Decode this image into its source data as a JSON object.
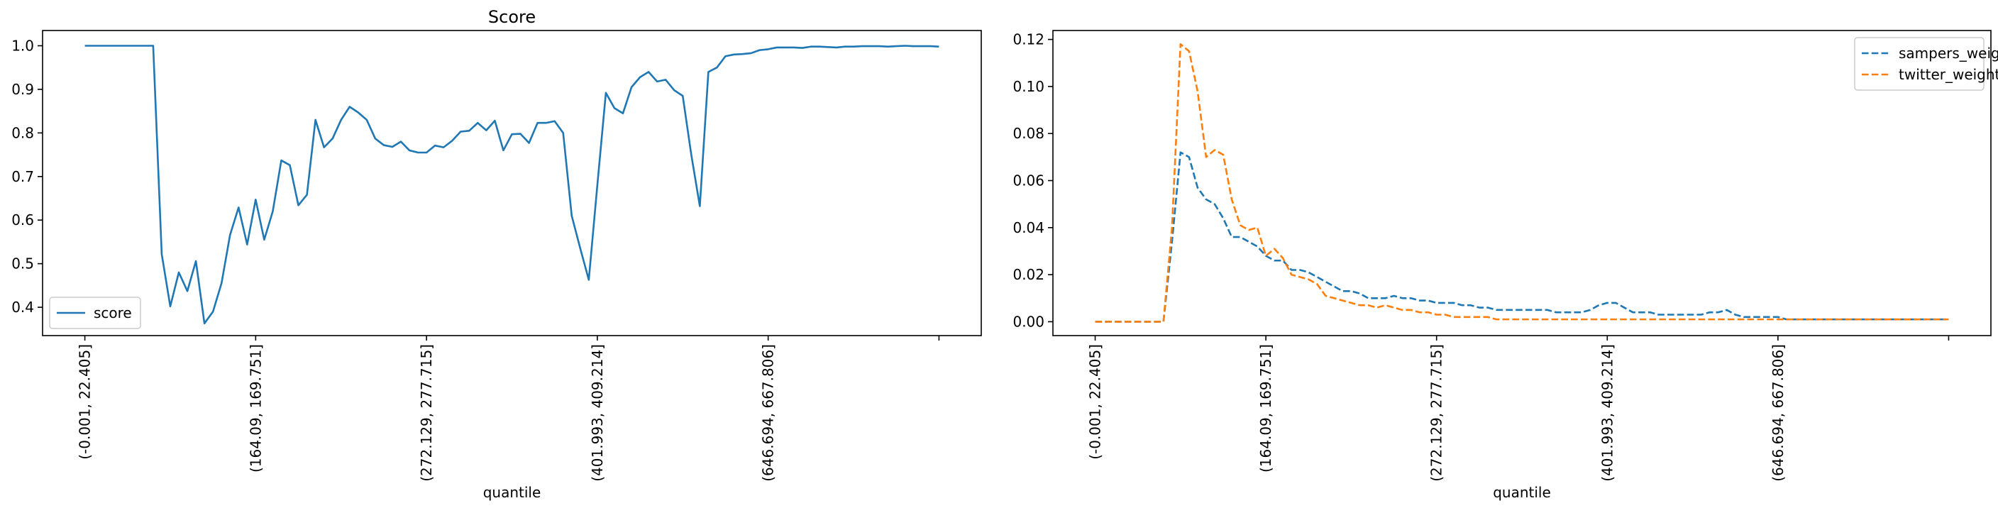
{
  "chart_data": [
    {
      "type": "line",
      "title": "Score",
      "xlabel": "quantile",
      "ylabel": "",
      "ylim": [
        0.335,
        1.035
      ],
      "yticks": [
        0.4,
        0.5,
        0.6,
        0.7,
        0.8,
        0.9,
        1.0
      ],
      "ytick_labels": [
        "0.4",
        "0.5",
        "0.6",
        "0.7",
        "0.8",
        "0.9",
        "1.0"
      ],
      "xlim": [
        -4.95,
        104.95
      ],
      "xticks": [
        0,
        20,
        40,
        60,
        80,
        100
      ],
      "xtick_labels": [
        "(-0.001, 22.405]",
        "(164.09, 169.751]",
        "(272.129, 277.715]",
        "(401.993, 409.214]",
        "(646.694, 667.806]",
        ""
      ],
      "grid": false,
      "legend_position": "lower-left",
      "series": [
        {
          "name": "score",
          "color": "#1f77b4",
          "dashed": false,
          "values": [
            1.0,
            1.0,
            1.0,
            1.0,
            1.0,
            1.0,
            1.0,
            1.0,
            1.0,
            0.522,
            0.402,
            0.48,
            0.437,
            0.506,
            0.363,
            0.39,
            0.455,
            0.566,
            0.629,
            0.544,
            0.647,
            0.555,
            0.62,
            0.737,
            0.726,
            0.634,
            0.658,
            0.83,
            0.767,
            0.787,
            0.83,
            0.86,
            0.847,
            0.83,
            0.787,
            0.772,
            0.768,
            0.78,
            0.76,
            0.755,
            0.755,
            0.771,
            0.767,
            0.782,
            0.803,
            0.805,
            0.823,
            0.806,
            0.828,
            0.76,
            0.797,
            0.798,
            0.777,
            0.823,
            0.823,
            0.827,
            0.8,
            0.61,
            0.535,
            0.463,
            0.68,
            0.892,
            0.857,
            0.845,
            0.905,
            0.928,
            0.94,
            0.918,
            0.922,
            0.898,
            0.885,
            0.75,
            0.632,
            0.94,
            0.95,
            0.976,
            0.98,
            0.981,
            0.983,
            0.99,
            0.992,
            0.996,
            0.996,
            0.996,
            0.995,
            0.998,
            0.998,
            0.997,
            0.996,
            0.998,
            0.998,
            0.999,
            0.999,
            0.999,
            0.998,
            0.999,
            1.0,
            0.999,
            0.999,
            0.999,
            0.998
          ]
        }
      ]
    },
    {
      "type": "line",
      "title": "",
      "xlabel": "quantile",
      "ylabel": "",
      "ylim": [
        -0.0059,
        0.1238
      ],
      "yticks": [
        0.0,
        0.02,
        0.04,
        0.06,
        0.08,
        0.1,
        0.12
      ],
      "ytick_labels": [
        "0.00",
        "0.02",
        "0.04",
        "0.06",
        "0.08",
        "0.10",
        "0.12"
      ],
      "xlim": [
        -4.95,
        104.95
      ],
      "xticks": [
        0,
        20,
        40,
        60,
        80,
        100
      ],
      "xtick_labels": [
        "(-0.001, 22.405]",
        "(164.09, 169.751]",
        "(272.129, 277.715]",
        "(401.993, 409.214]",
        "(646.694, 667.806]",
        ""
      ],
      "grid": false,
      "legend_position": "upper-right",
      "series": [
        {
          "name": "sampers_weight",
          "color": "#1f77b4",
          "dashed": true,
          "values": [
            0,
            0,
            0,
            0,
            0,
            0,
            0,
            0,
            0,
            0.034,
            0.072,
            0.07,
            0.057,
            0.052,
            0.05,
            0.044,
            0.036,
            0.036,
            0.034,
            0.032,
            0.028,
            0.026,
            0.026,
            0.022,
            0.022,
            0.021,
            0.019,
            0.017,
            0.015,
            0.013,
            0.013,
            0.012,
            0.01,
            0.01,
            0.01,
            0.011,
            0.01,
            0.01,
            0.009,
            0.009,
            0.008,
            0.008,
            0.008,
            0.007,
            0.007,
            0.006,
            0.006,
            0.005,
            0.005,
            0.005,
            0.005,
            0.005,
            0.005,
            0.005,
            0.004,
            0.004,
            0.004,
            0.004,
            0.005,
            0.007,
            0.008,
            0.008,
            0.006,
            0.004,
            0.004,
            0.004,
            0.003,
            0.003,
            0.003,
            0.003,
            0.003,
            0.003,
            0.004,
            0.004,
            0.005,
            0.003,
            0.002,
            0.002,
            0.002,
            0.002,
            0.002,
            0.001,
            0.001,
            0.001,
            0.001,
            0.001,
            0.001,
            0.001,
            0.001,
            0.001,
            0.001,
            0.001,
            0.001,
            0.001,
            0.001,
            0.001,
            0.001,
            0.001,
            0.001,
            0.001,
            0.001
          ]
        },
        {
          "name": "twitter_weight",
          "color": "#ff7f0e",
          "dashed": true,
          "values": [
            0,
            0,
            0,
            0,
            0,
            0,
            0,
            0,
            0,
            0.04,
            0.118,
            0.115,
            0.098,
            0.07,
            0.073,
            0.071,
            0.052,
            0.041,
            0.039,
            0.04,
            0.028,
            0.031,
            0.027,
            0.02,
            0.019,
            0.018,
            0.016,
            0.011,
            0.01,
            0.009,
            0.008,
            0.007,
            0.007,
            0.006,
            0.007,
            0.006,
            0.005,
            0.005,
            0.004,
            0.004,
            0.003,
            0.003,
            0.002,
            0.002,
            0.002,
            0.002,
            0.002,
            0.001,
            0.001,
            0.001,
            0.001,
            0.001,
            0.001,
            0.001,
            0.001,
            0.001,
            0.001,
            0.001,
            0.001,
            0.001,
            0.001,
            0.001,
            0.001,
            0.001,
            0.001,
            0.001,
            0.001,
            0.001,
            0.001,
            0.001,
            0.001,
            0.001,
            0.001,
            0.001,
            0.001,
            0.001,
            0.001,
            0.001,
            0.001,
            0.001,
            0.001,
            0.001,
            0.001,
            0.001,
            0.001,
            0.001,
            0.001,
            0.001,
            0.001,
            0.001,
            0.001,
            0.001,
            0.001,
            0.001,
            0.001,
            0.001,
            0.001,
            0.001,
            0.001,
            0.001,
            0.001
          ]
        }
      ]
    }
  ]
}
